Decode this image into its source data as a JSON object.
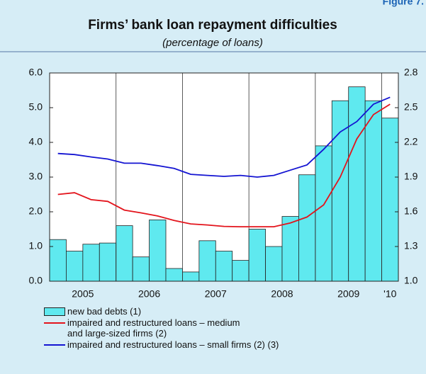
{
  "figure_label": "Figure 7.",
  "chart_data": {
    "type": "combo",
    "title": "Firms’ bank loan repayment difficulties",
    "subtitle": "(percentage of loans)",
    "categories": [
      null,
      "2005",
      null,
      null,
      null,
      "2006",
      null,
      null,
      null,
      "2007",
      null,
      null,
      null,
      "2008",
      null,
      null,
      null,
      "2009",
      null,
      null,
      "'10"
    ],
    "ylim": [
      0,
      6
    ],
    "yticks": [
      {
        "value": 0,
        "label": "0.0"
      },
      {
        "value": 1,
        "label": "1.0"
      },
      {
        "value": 2,
        "label": "2.0"
      },
      {
        "value": 3,
        "label": "3.0"
      },
      {
        "value": 4,
        "label": "4.0"
      },
      {
        "value": 5,
        "label": "5.0"
      },
      {
        "value": 6,
        "label": "6.0"
      }
    ],
    "y2lim": [
      1,
      2.8
    ],
    "y2ticks": [
      {
        "value": 1,
        "label": "1.0"
      },
      1.3,
      1.6,
      1.9,
      2.2,
      2.5,
      2.8
    ],
    "series": [
      {
        "name": "new bad debts (1)",
        "type": "area",
        "axis": "y2",
        "color": "#5fe9ef",
        "values": [
          1.36,
          1.26,
          1.32,
          1.33,
          1.48,
          1.21,
          1.53,
          1.11,
          1.08,
          1.35,
          1.26,
          1.18,
          1.45,
          1.3,
          1.56,
          1.92,
          2.17,
          2.56,
          2.68,
          2.56,
          2.41
        ]
      },
      {
        "name": "impaired and restructured loans – medium\nand large-sized firms (2)",
        "type": "line",
        "color": "#e3141c",
        "values": [
          2.5,
          2.55,
          2.35,
          2.3,
          2.05,
          1.97,
          1.88,
          1.75,
          1.65,
          1.62,
          1.58,
          1.57,
          1.57,
          1.57,
          1.68,
          1.85,
          2.2,
          3.0,
          4.1,
          4.8,
          5.1
        ]
      },
      {
        "name": "impaired and restructured loans – small firms (2) (3)",
        "type": "line",
        "color": "#1414d2",
        "values": [
          3.68,
          3.65,
          3.58,
          3.52,
          3.4,
          3.4,
          3.33,
          3.25,
          3.08,
          3.05,
          3.02,
          3.05,
          3.0,
          3.05,
          3.2,
          3.35,
          3.8,
          4.3,
          4.6,
          5.1,
          5.3
        ]
      }
    ]
  }
}
